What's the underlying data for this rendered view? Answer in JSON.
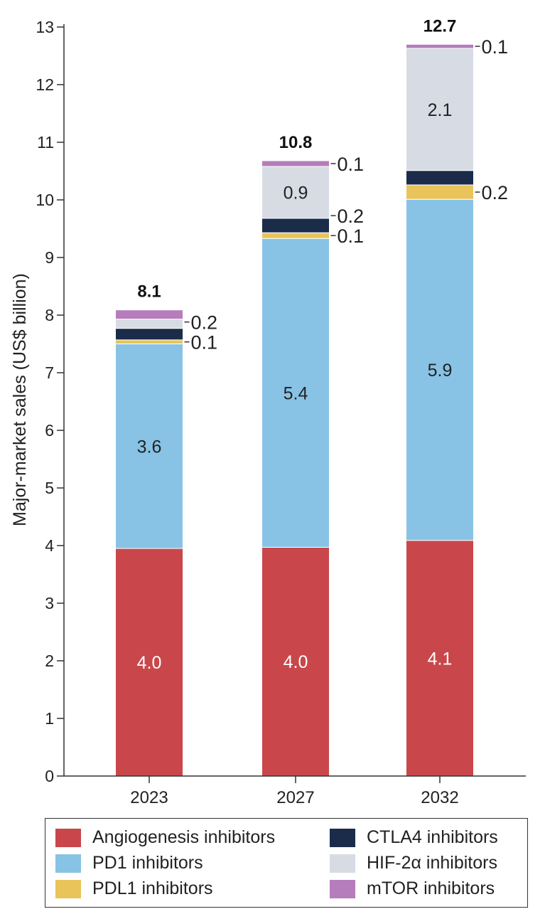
{
  "chart_data": {
    "type": "bar",
    "stacked": true,
    "ylabel": "Major-market sales (US$ billion)",
    "ylim": [
      0,
      13
    ],
    "yticks": [
      "0",
      "1",
      "2",
      "3",
      "4",
      "5",
      "6",
      "7",
      "8",
      "9",
      "10",
      "11",
      "12",
      "13"
    ],
    "categories": [
      "2023",
      "2027",
      "2032"
    ],
    "totals": [
      "8.1",
      "10.8",
      "12.7"
    ],
    "series": [
      {
        "name": "Angiogenesis inhibitors",
        "color": "#c9474a",
        "values": [
          3.95,
          3.97,
          4.09
        ],
        "labels": [
          "4.0",
          "4.0",
          "4.1"
        ],
        "label_mode": [
          "inside",
          "inside",
          "inside"
        ],
        "label_color": "#ffffff"
      },
      {
        "name": "PD1 inhibitors",
        "color": "#88c3e6",
        "values": [
          3.55,
          5.36,
          5.92
        ],
        "labels": [
          "3.6",
          "5.4",
          "5.9"
        ],
        "label_mode": [
          "inside",
          "inside",
          "inside"
        ],
        "label_color": "#222222"
      },
      {
        "name": "PDL1 inhibitors",
        "color": "#e8c45a",
        "values": [
          0.07,
          0.1,
          0.25
        ],
        "labels": [
          "0.1",
          "0.1",
          "0.2"
        ],
        "label_mode": [
          "side",
          "side",
          "side"
        ],
        "label_color": "#222222"
      },
      {
        "name": "CTLA4 inhibitors",
        "color": "#1b2c4a",
        "values": [
          0.2,
          0.25,
          0.25
        ],
        "labels": [
          "0.2",
          "0.2",
          ""
        ],
        "label_mode": [
          "side",
          "side",
          "none"
        ],
        "label_color": "#222222"
      },
      {
        "name": "HIF-2α inhibitors",
        "color": "#d7dbe4",
        "values": [
          0.16,
          0.9,
          2.12
        ],
        "labels": [
          "",
          "0.9",
          "2.1"
        ],
        "label_mode": [
          "none",
          "inside",
          "inside"
        ],
        "label_color": "#222222"
      },
      {
        "name": "mTOR inhibitors",
        "color": "#b57dbb",
        "values": [
          0.16,
          0.1,
          0.07
        ],
        "labels": [
          "",
          "0.1",
          "0.1"
        ],
        "label_mode": [
          "none",
          "side",
          "side"
        ],
        "label_color": "#222222"
      }
    ],
    "legend_position": "bottom",
    "grid": false
  }
}
